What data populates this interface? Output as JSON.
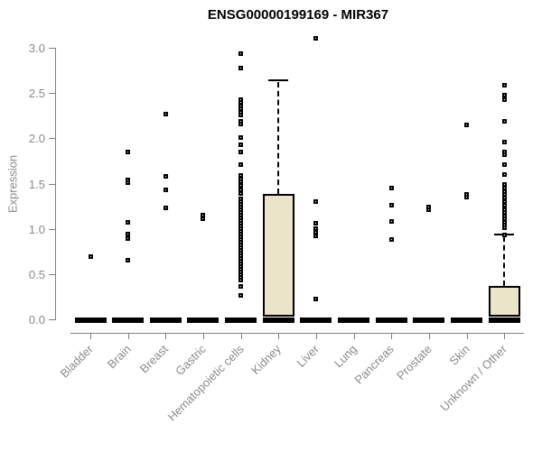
{
  "chart_data": {
    "type": "boxplot",
    "title": "ENSG00000199169 - MIR367",
    "ylabel": "Expression",
    "xlabel": "",
    "ylim": [
      0.0,
      3.1
    ],
    "yticks": [
      0.0,
      0.5,
      1.0,
      1.5,
      2.0,
      2.5,
      3.0
    ],
    "grid": false,
    "legend": null,
    "categories": [
      "Bladder",
      "Brain",
      "Breast",
      "Gastric",
      "Hematopoietic cells",
      "Kidney",
      "Liver",
      "Lung",
      "Pancreas",
      "Prostate",
      "Skin",
      "Unknown / Other"
    ],
    "series": [
      {
        "name": "Bladder",
        "median": 0,
        "q1": 0,
        "q3": 0,
        "whisker_low": 0,
        "whisker_high": 0,
        "outliers": [
          0.7
        ]
      },
      {
        "name": "Brain",
        "median": 0,
        "q1": 0,
        "q3": 0,
        "whisker_low": 0,
        "whisker_high": 0,
        "outliers": [
          1.85,
          1.54,
          1.51,
          1.08,
          0.95,
          0.9,
          0.66
        ]
      },
      {
        "name": "Breast",
        "median": 0,
        "q1": 0,
        "q3": 0,
        "whisker_low": 0,
        "whisker_high": 0,
        "outliers": [
          2.27,
          1.58,
          1.44,
          1.24
        ]
      },
      {
        "name": "Gastric",
        "median": 0,
        "q1": 0,
        "q3": 0,
        "whisker_low": 0,
        "whisker_high": 0,
        "outliers": [
          1.16,
          1.12
        ]
      },
      {
        "name": "Hematopoietic cells",
        "median": 0,
        "q1": 0,
        "q3": 0,
        "whisker_low": 0,
        "whisker_high": 0,
        "outliers": [
          2.94,
          2.78,
          2.43,
          2.4,
          2.36,
          2.33,
          2.29,
          2.26,
          2.19,
          2.16,
          2.01,
          1.93,
          1.85,
          1.71,
          1.59,
          1.55,
          1.52,
          1.49,
          1.44,
          1.4,
          1.34,
          1.31,
          1.28,
          1.25,
          1.22,
          1.19,
          1.16,
          1.13,
          1.1,
          1.07,
          1.04,
          1.01,
          0.98,
          0.95,
          0.92,
          0.89,
          0.86,
          0.83,
          0.8,
          0.77,
          0.74,
          0.71,
          0.68,
          0.65,
          0.62,
          0.59,
          0.56,
          0.53,
          0.5,
          0.47,
          0.44,
          0.37,
          0.27
        ]
      },
      {
        "name": "Kidney",
        "median": 0,
        "q1": 0.03,
        "q3": 1.39,
        "whisker_low": 0,
        "whisker_high": 2.65,
        "outliers": []
      },
      {
        "name": "Liver",
        "median": 0,
        "q1": 0,
        "q3": 0,
        "whisker_low": 0,
        "whisker_high": 0,
        "outliers": [
          3.11,
          1.31,
          1.07,
          1.01,
          0.97,
          0.93,
          0.23
        ]
      },
      {
        "name": "Lung",
        "median": 0,
        "q1": 0,
        "q3": 0,
        "whisker_low": 0,
        "whisker_high": 0,
        "outliers": []
      },
      {
        "name": "Pancreas",
        "median": 0,
        "q1": 0,
        "q3": 0,
        "whisker_low": 0,
        "whisker_high": 0,
        "outliers": [
          1.46,
          1.27,
          1.09,
          0.89
        ]
      },
      {
        "name": "Prostate",
        "median": 0,
        "q1": 0,
        "q3": 0,
        "whisker_low": 0,
        "whisker_high": 0,
        "outliers": [
          1.25,
          1.22
        ]
      },
      {
        "name": "Skin",
        "median": 0,
        "q1": 0,
        "q3": 0,
        "whisker_low": 0,
        "whisker_high": 0,
        "outliers": [
          2.15,
          1.39,
          1.36
        ]
      },
      {
        "name": "Unknown / Other",
        "median": 0,
        "q1": 0.03,
        "q3": 0.37,
        "whisker_low": 0,
        "whisker_high": 0.94,
        "outliers": [
          2.59,
          2.48,
          2.43,
          2.19,
          1.96,
          1.85,
          1.82,
          1.71,
          1.6,
          1.5,
          1.46,
          1.42,
          1.39,
          1.35,
          1.31,
          1.27,
          1.22,
          1.19,
          1.15,
          1.12,
          1.08,
          1.05,
          1.02,
          0.94
        ]
      }
    ],
    "colors": {
      "box_fill": "#EAE4C8",
      "box_border": "#000000",
      "median": "#000000",
      "outlier": "#000000",
      "axis": "#7f7f7f",
      "tick_label": "#8a8a8a",
      "title": "#000000",
      "background": "#ffffff"
    }
  }
}
